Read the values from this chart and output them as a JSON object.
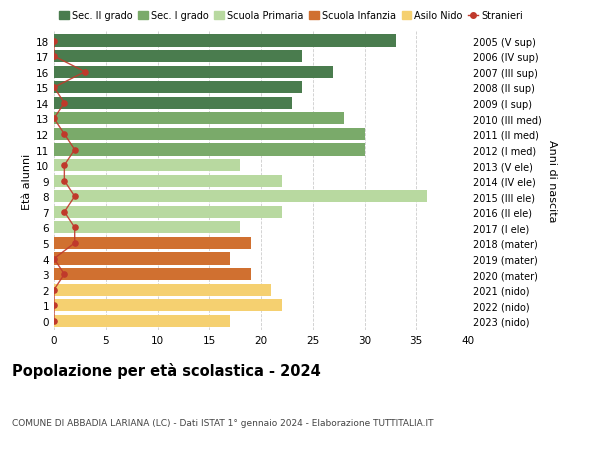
{
  "ages": [
    18,
    17,
    16,
    15,
    14,
    13,
    12,
    11,
    10,
    9,
    8,
    7,
    6,
    5,
    4,
    3,
    2,
    1,
    0
  ],
  "labels_right": [
    "2005 (V sup)",
    "2006 (IV sup)",
    "2007 (III sup)",
    "2008 (II sup)",
    "2009 (I sup)",
    "2010 (III med)",
    "2011 (II med)",
    "2012 (I med)",
    "2013 (V ele)",
    "2014 (IV ele)",
    "2015 (III ele)",
    "2016 (II ele)",
    "2017 (I ele)",
    "2018 (mater)",
    "2019 (mater)",
    "2020 (mater)",
    "2021 (nido)",
    "2022 (nido)",
    "2023 (nido)"
  ],
  "bar_values": [
    33,
    24,
    27,
    24,
    23,
    28,
    30,
    30,
    18,
    22,
    36,
    22,
    18,
    19,
    17,
    19,
    21,
    22,
    17
  ],
  "bar_colors": [
    "#4a7c4e",
    "#4a7c4e",
    "#4a7c4e",
    "#4a7c4e",
    "#4a7c4e",
    "#7aaa6a",
    "#7aaa6a",
    "#7aaa6a",
    "#b8d9a0",
    "#b8d9a0",
    "#b8d9a0",
    "#b8d9a0",
    "#b8d9a0",
    "#d07030",
    "#d07030",
    "#d07030",
    "#f5d070",
    "#f5d070",
    "#f5d070"
  ],
  "stranieri_values": [
    0,
    0,
    3,
    0,
    1,
    0,
    1,
    2,
    1,
    1,
    2,
    1,
    2,
    2,
    0,
    1,
    0,
    0,
    0
  ],
  "legend_labels": [
    "Sec. II grado",
    "Sec. I grado",
    "Scuola Primaria",
    "Scuola Infanzia",
    "Asilo Nido",
    "Stranieri"
  ],
  "legend_colors": [
    "#4a7c4e",
    "#7aaa6a",
    "#b8d9a0",
    "#d07030",
    "#f5d070",
    "#c0392b"
  ],
  "ylabel": "Età alunni",
  "ylabel_right": "Anni di nascita",
  "title": "Popolazione per età scolastica - 2024",
  "subtitle": "COMUNE DI ABBADIA LARIANA (LC) - Dati ISTAT 1° gennaio 2024 - Elaborazione TUTTITALIA.IT",
  "xlim": [
    0,
    40
  ],
  "xticks": [
    0,
    5,
    10,
    15,
    20,
    25,
    30,
    35,
    40
  ],
  "stranieri_color": "#c0392b",
  "stranieri_line_color": "#c0392b",
  "bg_color": "#ffffff",
  "bar_height": 0.78
}
